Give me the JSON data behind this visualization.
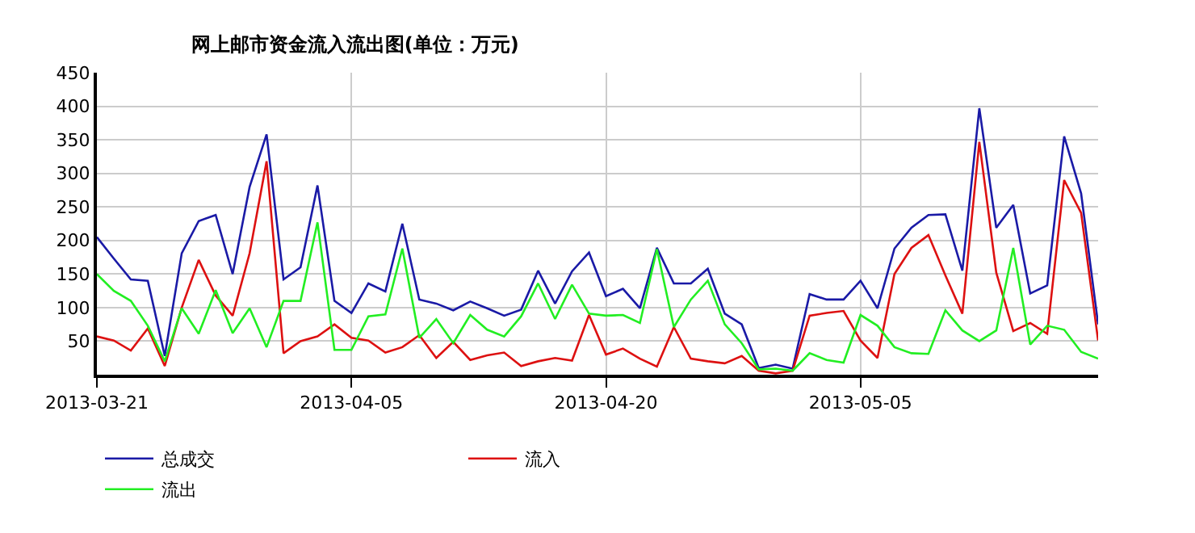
{
  "chart_data": {
    "type": "line",
    "title": "网上邮市资金流入流出图(单位：万元)",
    "x": [
      "2013-03-21",
      "2013-03-22",
      "2013-03-23",
      "2013-03-24",
      "2013-03-25",
      "2013-03-26",
      "2013-03-27",
      "2013-03-28",
      "2013-03-29",
      "2013-03-30",
      "2013-03-31",
      "2013-04-01",
      "2013-04-02",
      "2013-04-03",
      "2013-04-04",
      "2013-04-05",
      "2013-04-06",
      "2013-04-07",
      "2013-04-08",
      "2013-04-09",
      "2013-04-10",
      "2013-04-11",
      "2013-04-12",
      "2013-04-13",
      "2013-04-14",
      "2013-04-15",
      "2013-04-16",
      "2013-04-17",
      "2013-04-18",
      "2013-04-19",
      "2013-04-20",
      "2013-04-21",
      "2013-04-22",
      "2013-04-23",
      "2013-04-24",
      "2013-04-25",
      "2013-04-26",
      "2013-04-27",
      "2013-04-28",
      "2013-04-29",
      "2013-04-30",
      "2013-05-01",
      "2013-05-02",
      "2013-05-03",
      "2013-05-04",
      "2013-05-05",
      "2013-05-06",
      "2013-05-07",
      "2013-05-08",
      "2013-05-09",
      "2013-05-10",
      "2013-05-11",
      "2013-05-12",
      "2013-05-13",
      "2013-05-14",
      "2013-05-15",
      "2013-05-16",
      "2013-05-17",
      "2013-05-18",
      "2013-05-19"
    ],
    "series": [
      {
        "name": "总成交",
        "color": "#1a1aa6",
        "values": [
          205,
          173,
          142,
          140,
          28,
          181,
          229,
          238,
          150,
          280,
          358,
          142,
          160,
          282,
          110,
          92,
          136,
          124,
          225,
          112,
          106,
          96,
          109,
          99,
          88,
          97,
          155,
          106,
          154,
          182,
          117,
          128,
          99,
          189,
          136,
          136,
          158,
          91,
          75,
          10,
          15,
          9,
          120,
          112,
          112,
          140,
          99,
          188,
          219,
          238,
          239,
          155,
          397,
          219,
          253,
          121,
          133,
          355,
          270,
          75
        ]
      },
      {
        "name": "流入",
        "color": "#dd1111",
        "values": [
          57,
          51,
          36,
          69,
          13,
          100,
          171,
          118,
          88,
          181,
          318,
          32,
          50,
          57,
          75,
          55,
          51,
          33,
          41,
          59,
          25,
          49,
          22,
          29,
          33,
          13,
          20,
          25,
          21,
          89,
          30,
          39,
          24,
          12,
          71,
          24,
          20,
          17,
          28,
          6,
          2,
          6,
          88,
          92,
          95,
          51,
          25,
          150,
          189,
          208,
          148,
          91,
          347,
          152,
          65,
          77,
          61,
          290,
          241,
          51
        ]
      },
      {
        "name": "流出",
        "color": "#22ee22",
        "values": [
          150,
          125,
          110,
          73,
          20,
          99,
          61,
          126,
          62,
          99,
          41,
          110,
          110,
          227,
          37,
          37,
          87,
          90,
          188,
          55,
          83,
          47,
          89,
          67,
          57,
          87,
          136,
          83,
          134,
          91,
          88,
          89,
          77,
          187,
          71,
          112,
          140,
          75,
          47,
          8,
          9,
          6,
          32,
          22,
          18,
          89,
          73,
          41,
          32,
          31,
          96,
          66,
          50,
          66,
          189,
          45,
          73,
          67,
          34,
          24
        ]
      }
    ],
    "xlim": [
      "2013-03-21",
      "2013-05-19"
    ],
    "xticks": [
      "2013-03-21",
      "2013-04-05",
      "2013-04-20",
      "2013-05-05"
    ],
    "ylim": [
      0,
      450
    ],
    "yticks": [
      50,
      100,
      150,
      200,
      250,
      300,
      350,
      400,
      450
    ],
    "grid": true,
    "legend": "bottom left",
    "marker": "none",
    "line_style": "solid"
  }
}
